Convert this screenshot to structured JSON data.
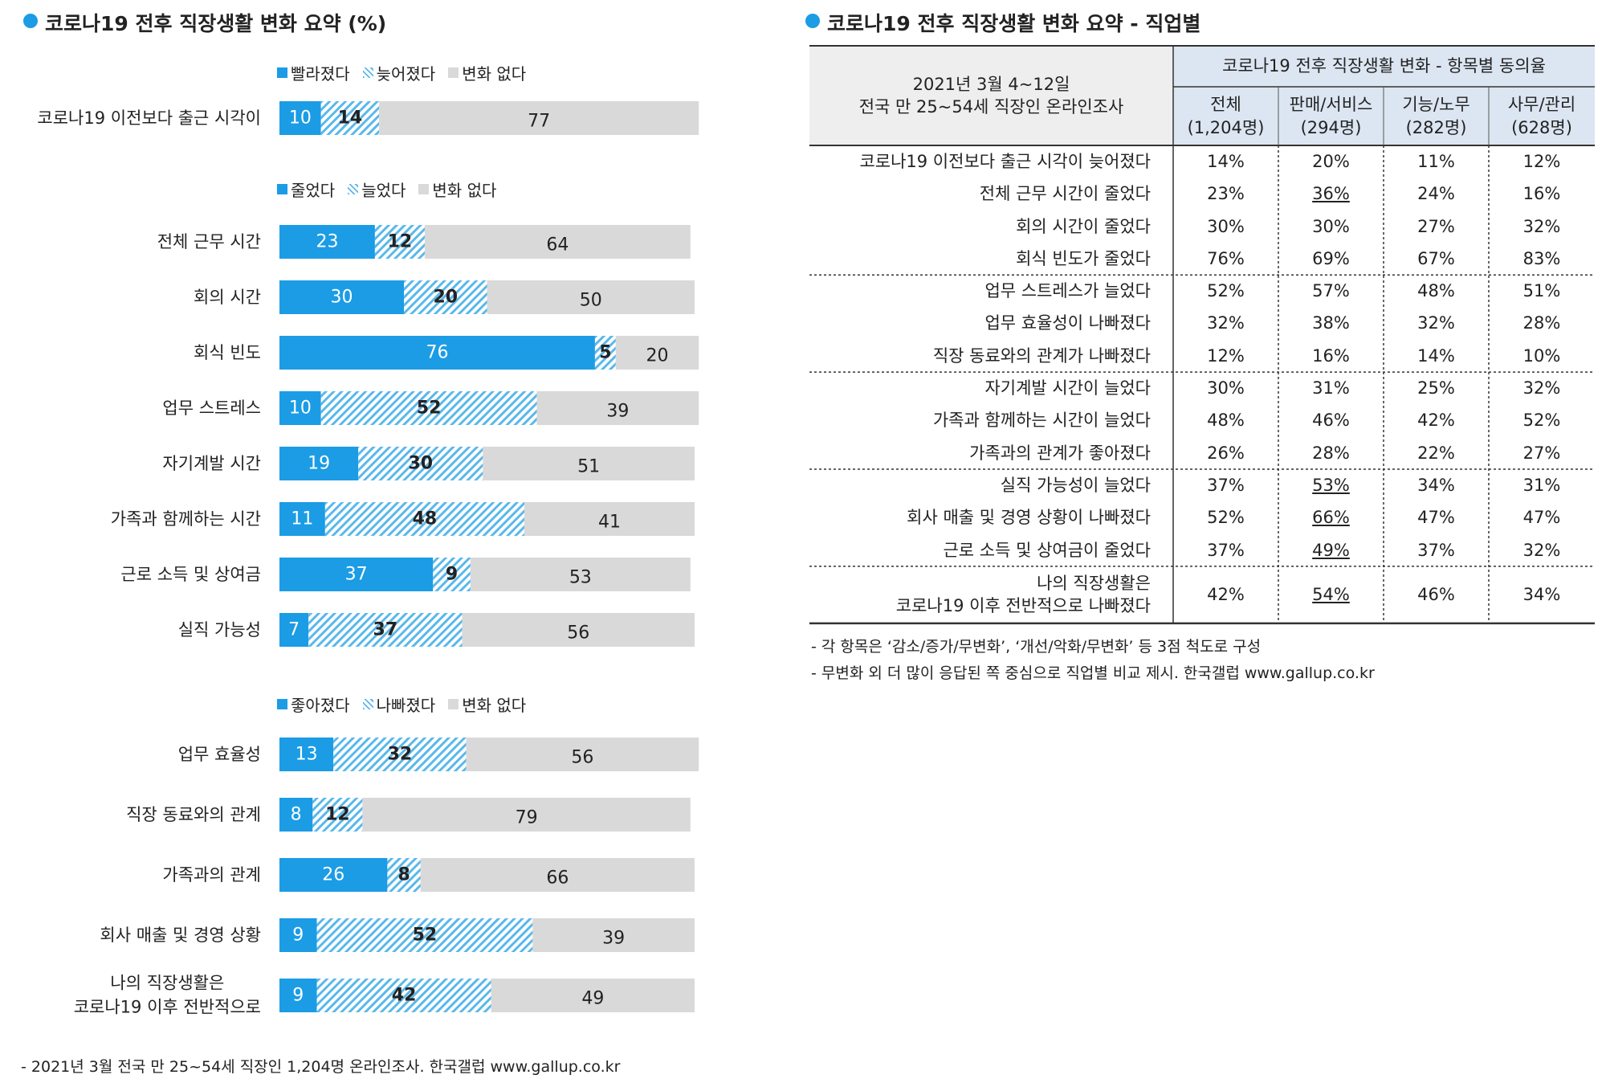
{
  "title": "코로나19 전후 직장생활 변화 요약 (%)",
  "chart_data": [
    {
      "type": "bar",
      "orientation": "horizontal",
      "stacked": true,
      "categories": [
        "코로나19 이전보다 출근 시각이"
      ],
      "series": [
        {
          "name": "빨라졌다",
          "color": "#1b9ce5",
          "pattern": "solid",
          "values": [
            10
          ]
        },
        {
          "name": "늦어졌다",
          "color": "#5ab8ea",
          "pattern": "hatch",
          "values": [
            14
          ]
        },
        {
          "name": "변화 없다",
          "color": "#d9d9d9",
          "pattern": "solid",
          "values": [
            77
          ]
        }
      ]
    },
    {
      "type": "bar",
      "orientation": "horizontal",
      "stacked": true,
      "categories": [
        "전체 근무 시간",
        "회의 시간",
        "회식 빈도",
        "업무 스트레스",
        "자기계발 시간",
        "가족과 함께하는 시간",
        "근로 소득 및 상여금",
        "실직 가능성"
      ],
      "series": [
        {
          "name": "줄었다",
          "color": "#1b9ce5",
          "pattern": "solid",
          "values": [
            23,
            30,
            76,
            10,
            19,
            11,
            37,
            7
          ]
        },
        {
          "name": "늘었다",
          "color": "#5ab8ea",
          "pattern": "hatch",
          "values": [
            12,
            20,
            5,
            52,
            30,
            48,
            9,
            37
          ]
        },
        {
          "name": "변화 없다",
          "color": "#d9d9d9",
          "pattern": "solid",
          "values": [
            64,
            50,
            20,
            39,
            51,
            41,
            53,
            56
          ]
        }
      ]
    },
    {
      "type": "bar",
      "orientation": "horizontal",
      "stacked": true,
      "categories": [
        "업무 효율성",
        "직장 동료와의 관계",
        "가족과의 관계",
        "회사 매출 및 경영 상황",
        "나의 직장생활은\n코로나19 이후 전반적으로"
      ],
      "series": [
        {
          "name": "좋아졌다",
          "color": "#1b9ce5",
          "pattern": "solid",
          "values": [
            13,
            8,
            26,
            9,
            9
          ]
        },
        {
          "name": "나빠졌다",
          "color": "#5ab8ea",
          "pattern": "hatch",
          "values": [
            32,
            12,
            8,
            52,
            42
          ]
        },
        {
          "name": "변화 없다",
          "color": "#d9d9d9",
          "pattern": "solid",
          "values": [
            56,
            79,
            66,
            39,
            49
          ]
        }
      ]
    }
  ],
  "note": "- 2021년 3월 전국 만 25~54세 직장인 1,204명 온라인조사. 한국갤럽 www.gallup.co.kr",
  "table": {
    "title": "코로나19 전후 직장생활 변화 요약 - 직업별",
    "survey": "2021년 3월 4~12일\n전국 만 25~54세 직장인 온라인조사",
    "group_header": "코로나19 전후 직장생활 변화 - 항목별 동의율",
    "columns": [
      "전체\n(1,204명)",
      "판매/서비스\n(294명)",
      "기능/노무\n(282명)",
      "사무/관리\n(628명)"
    ],
    "sections": [
      {
        "rows": [
          {
            "label": "코로나19 이전보다 출근 시각이 늦어졌다",
            "values": [
              "14%",
              "20%",
              "11%",
              "12%"
            ]
          },
          {
            "label": "전체 근무 시간이 줄었다",
            "values": [
              "23%",
              "36%",
              "24%",
              "16%"
            ],
            "underline": [
              1
            ]
          },
          {
            "label": "회의 시간이 줄었다",
            "values": [
              "30%",
              "30%",
              "27%",
              "32%"
            ]
          },
          {
            "label": "회식 빈도가 줄었다",
            "values": [
              "76%",
              "69%",
              "67%",
              "83%"
            ]
          }
        ]
      },
      {
        "rows": [
          {
            "label": "업무 스트레스가 늘었다",
            "values": [
              "52%",
              "57%",
              "48%",
              "51%"
            ]
          },
          {
            "label": "업무 효율성이 나빠졌다",
            "values": [
              "32%",
              "38%",
              "32%",
              "28%"
            ]
          },
          {
            "label": "직장 동료와의 관계가 나빠졌다",
            "values": [
              "12%",
              "16%",
              "14%",
              "10%"
            ]
          }
        ]
      },
      {
        "rows": [
          {
            "label": "자기계발 시간이 늘었다",
            "values": [
              "30%",
              "31%",
              "25%",
              "32%"
            ]
          },
          {
            "label": "가족과 함께하는 시간이 늘었다",
            "values": [
              "48%",
              "46%",
              "42%",
              "52%"
            ]
          },
          {
            "label": "가족과의 관계가 좋아졌다",
            "values": [
              "26%",
              "28%",
              "22%",
              "27%"
            ]
          }
        ]
      },
      {
        "rows": [
          {
            "label": "실직 가능성이 늘었다",
            "values": [
              "37%",
              "53%",
              "34%",
              "31%"
            ],
            "underline": [
              1
            ]
          },
          {
            "label": "회사 매출 및 경영 상황이 나빠졌다",
            "values": [
              "52%",
              "66%",
              "47%",
              "47%"
            ],
            "underline": [
              1
            ]
          },
          {
            "label": "근로 소득 및 상여금이 줄었다",
            "values": [
              "37%",
              "49%",
              "37%",
              "32%"
            ],
            "underline": [
              1
            ]
          }
        ]
      },
      {
        "rows": [
          {
            "label": "나의 직장생활은\n코로나19 이후 전반적으로 나빠졌다",
            "values": [
              "42%",
              "54%",
              "46%",
              "34%"
            ],
            "underline": [
              1
            ]
          }
        ]
      }
    ],
    "notes": [
      "- 각 항목은 ‘감소/증가/무변화’, ‘개선/악화/무변화’ 등 3점 척도로 구성",
      "- 무변화 외 더 많이 응답된 쪽 중심으로 직업별 비교 제시. 한국갤럽 www.gallup.co.kr"
    ]
  }
}
